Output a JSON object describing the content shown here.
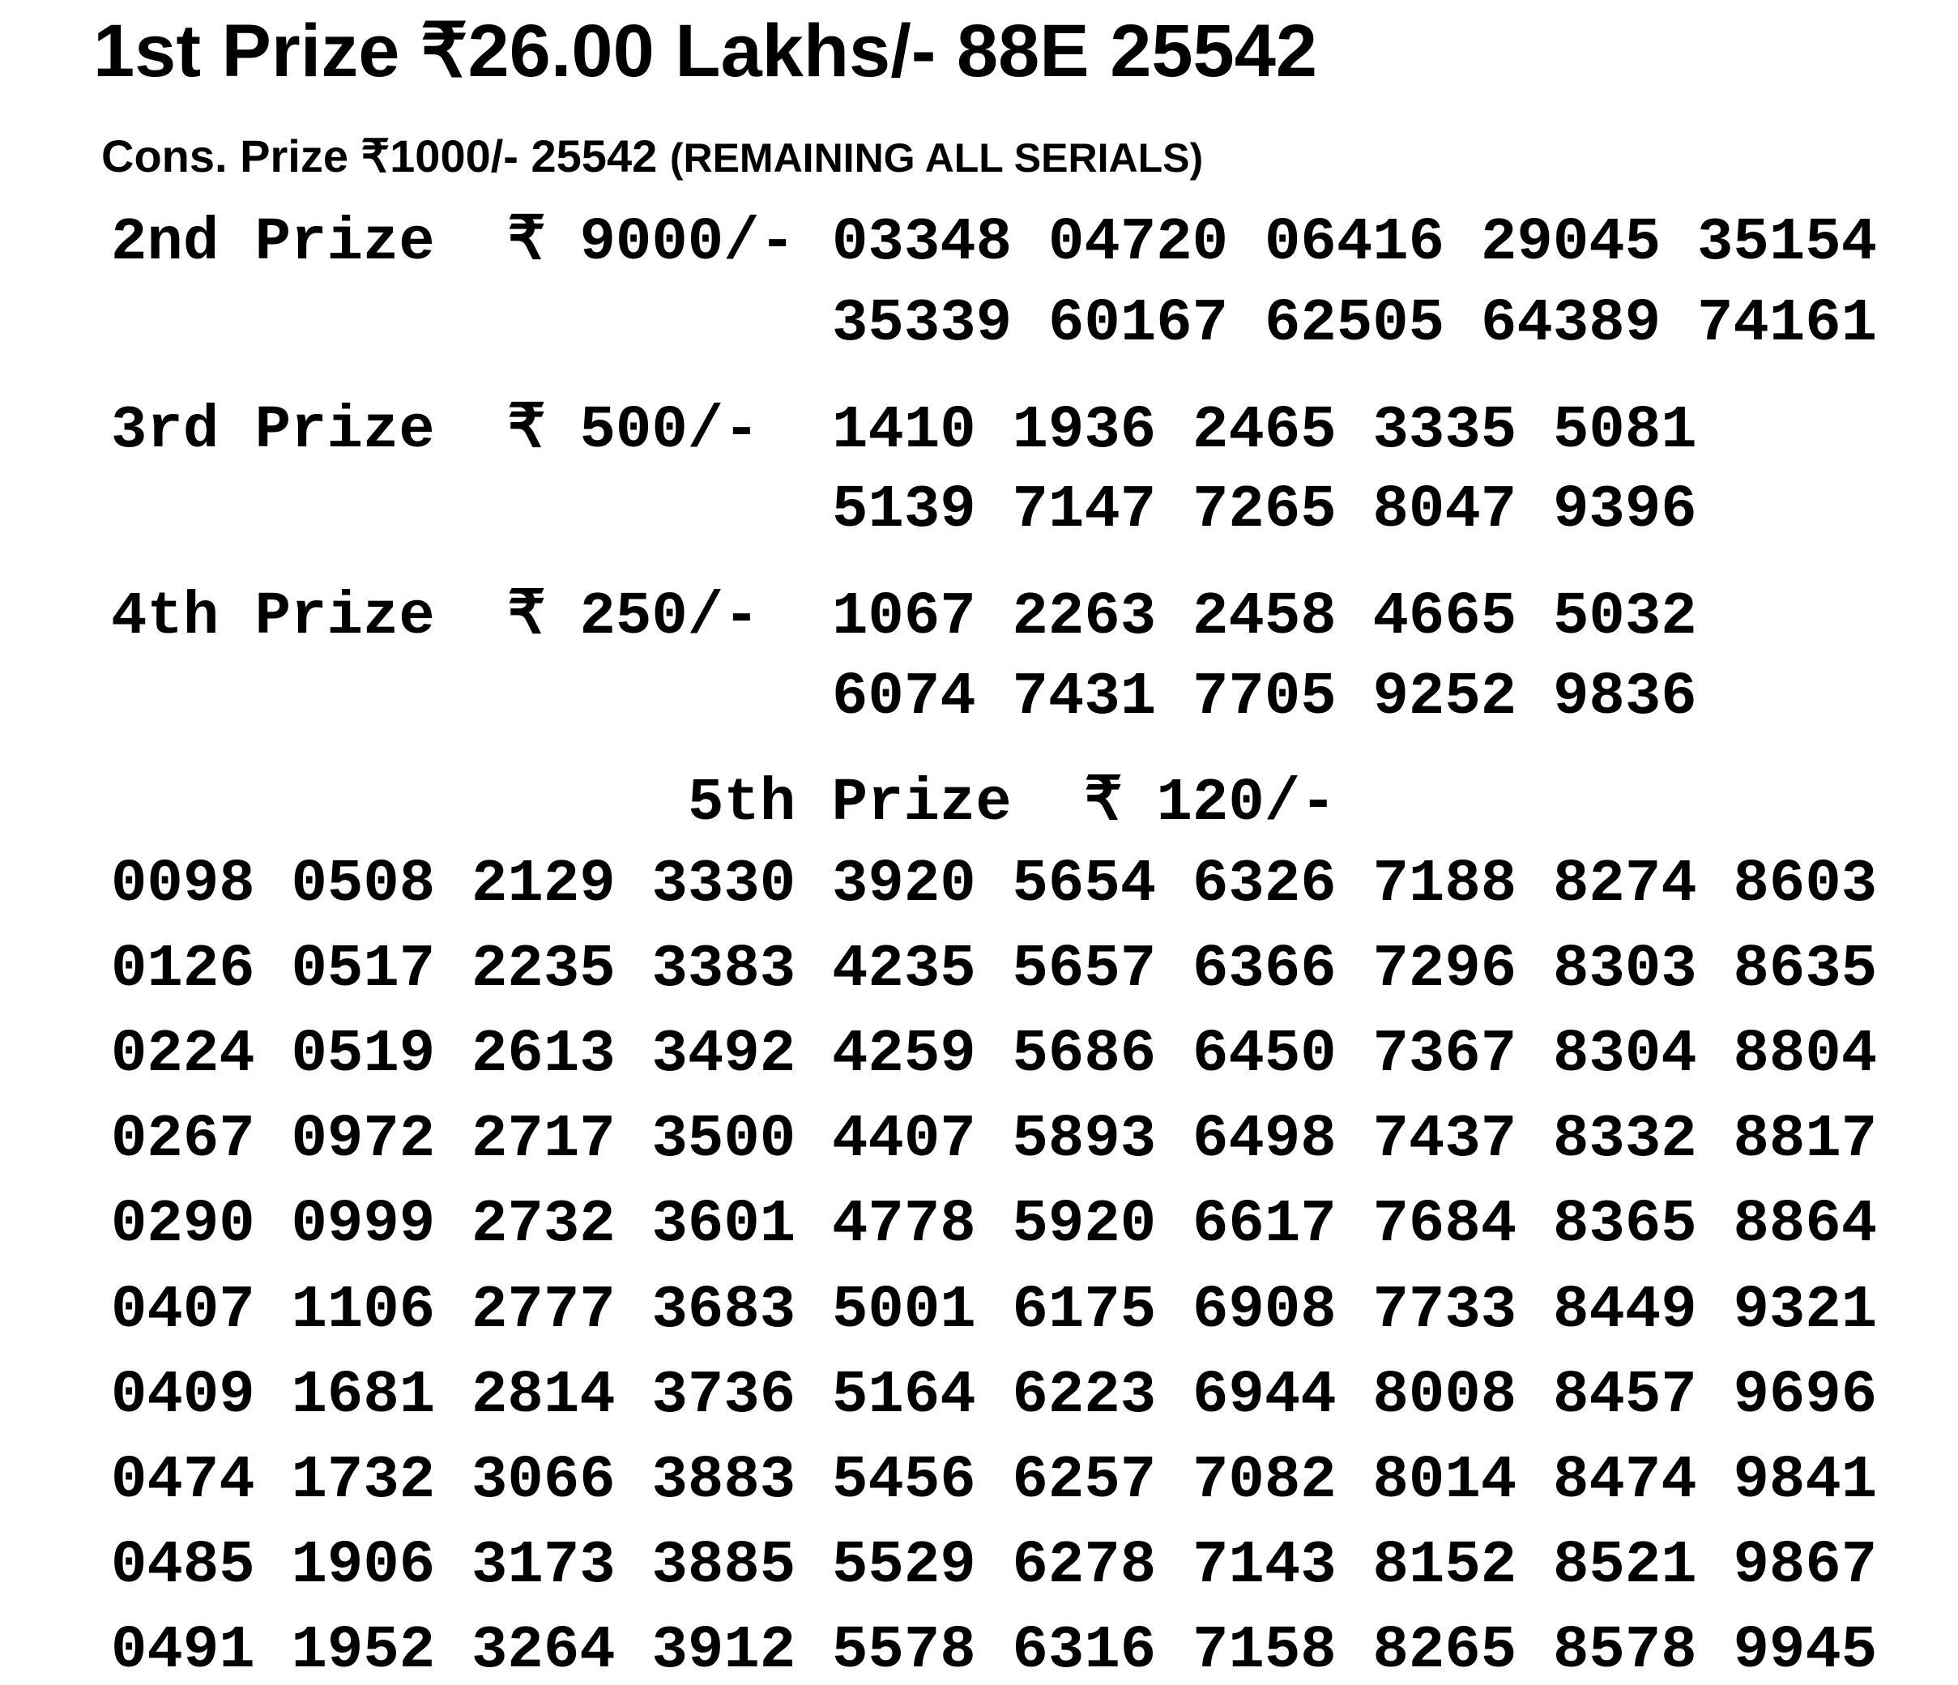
{
  "first_prize": {
    "label": "1st Prize",
    "amount": "₹26.00 Lakhs/-",
    "number": "88E 25542"
  },
  "consolation": {
    "label": "Cons. Prize",
    "amount": "₹1000/-",
    "number": "25542",
    "note": "(REMAINING ALL SERIALS)"
  },
  "prizes": [
    {
      "label": "2nd Prize",
      "currency": "₹",
      "amount": "9000/-",
      "numbers": [
        [
          "03348",
          "04720",
          "06416",
          "29045",
          "35154"
        ],
        [
          "35339",
          "60167",
          "62505",
          "64389",
          "74161"
        ]
      ]
    },
    {
      "label": "3rd Prize",
      "currency": "₹",
      "amount": "500/-",
      "numbers": [
        [
          "1410",
          "1936",
          "2465",
          "3335",
          "5081"
        ],
        [
          "5139",
          "7147",
          "7265",
          "8047",
          "9396"
        ]
      ]
    },
    {
      "label": "4th Prize",
      "currency": "₹",
      "amount": "250/-",
      "numbers": [
        [
          "1067",
          "2263",
          "2458",
          "4665",
          "5032"
        ],
        [
          "6074",
          "7431",
          "7705",
          "9252",
          "9836"
        ]
      ]
    }
  ],
  "fifth_prize": {
    "label": "5th Prize",
    "currency": "₹",
    "amount": "120/-",
    "rows": [
      [
        "0098",
        "0508",
        "2129",
        "3330",
        "3920",
        "5654",
        "6326",
        "7188",
        "8274",
        "8603"
      ],
      [
        "0126",
        "0517",
        "2235",
        "3383",
        "4235",
        "5657",
        "6366",
        "7296",
        "8303",
        "8635"
      ],
      [
        "0224",
        "0519",
        "2613",
        "3492",
        "4259",
        "5686",
        "6450",
        "7367",
        "8304",
        "8804"
      ],
      [
        "0267",
        "0972",
        "2717",
        "3500",
        "4407",
        "5893",
        "6498",
        "7437",
        "8332",
        "8817"
      ],
      [
        "0290",
        "0999",
        "2732",
        "3601",
        "4778",
        "5920",
        "6617",
        "7684",
        "8365",
        "8864"
      ],
      [
        "0407",
        "1106",
        "2777",
        "3683",
        "5001",
        "6175",
        "6908",
        "7733",
        "8449",
        "9321"
      ],
      [
        "0409",
        "1681",
        "2814",
        "3736",
        "5164",
        "6223",
        "6944",
        "8008",
        "8457",
        "9696"
      ],
      [
        "0474",
        "1732",
        "3066",
        "3883",
        "5456",
        "6257",
        "7082",
        "8014",
        "8474",
        "9841"
      ],
      [
        "0485",
        "1906",
        "3173",
        "3885",
        "5529",
        "6278",
        "7143",
        "8152",
        "8521",
        "9867"
      ],
      [
        "0491",
        "1952",
        "3264",
        "3912",
        "5578",
        "6316",
        "7158",
        "8265",
        "8578",
        "9945"
      ]
    ]
  }
}
